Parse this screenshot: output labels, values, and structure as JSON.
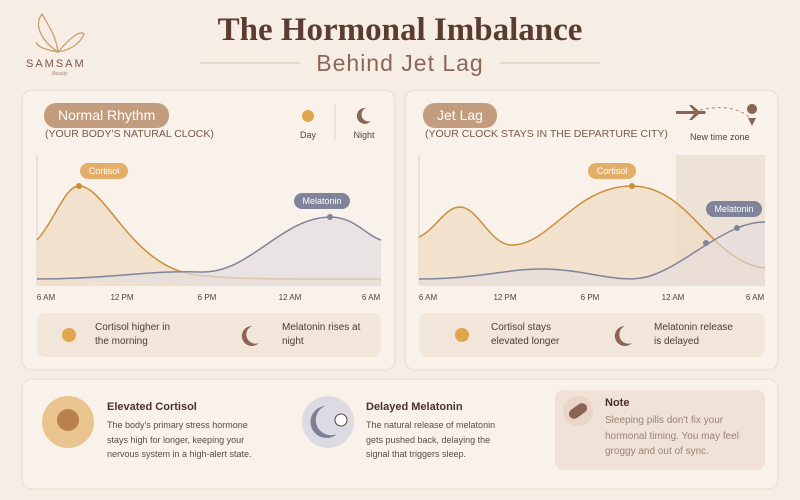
{
  "brand": {
    "name": "SAMSAM",
    "tagline": "Beauty"
  },
  "header": {
    "title": "The Hormonal Imbalance",
    "subtitle": "Behind Jet Lag"
  },
  "panels": [
    {
      "title": "Normal Rhythm",
      "subtitle": "(YOUR BODY'S NATURAL CLOCK)",
      "legend": [
        "Day",
        "Night"
      ],
      "curve_labels": [
        "Cortisol",
        "Melatonin"
      ],
      "x_labels": [
        "6 AM",
        "12 PM",
        "6 PM",
        "12 AM",
        "6 AM"
      ],
      "notes": [
        "Cortisol higher in the morning",
        "Melatonin rises at night"
      ]
    },
    {
      "title": "Jet Lag",
      "subtitle": "(YOUR CLOCK STAYS IN THE DEPARTURE CITY)",
      "legend": [
        "New time zone"
      ],
      "curve_labels": [
        "Cortisol",
        "Melatonin"
      ],
      "x_labels": [
        "6 AM",
        "12 PM",
        "6 PM",
        "12 AM",
        "6 AM"
      ],
      "notes": [
        "Cortisol stays elevated longer",
        "Melatonin release is delayed"
      ]
    }
  ],
  "cards": [
    {
      "title": "Elevated Cortisol",
      "text": "The body's primary stress hormone stays high for longer, keeping your nervous system in a high-alert state."
    },
    {
      "title": "Delayed Melatonin",
      "text": "The natural release of melatonin gets pushed back, delaying the signal that triggers sleep."
    },
    {
      "title": "Note",
      "text": "Sleeping pills don't fix your hormonal timing. You may feel groggy and out of sync."
    }
  ]
}
